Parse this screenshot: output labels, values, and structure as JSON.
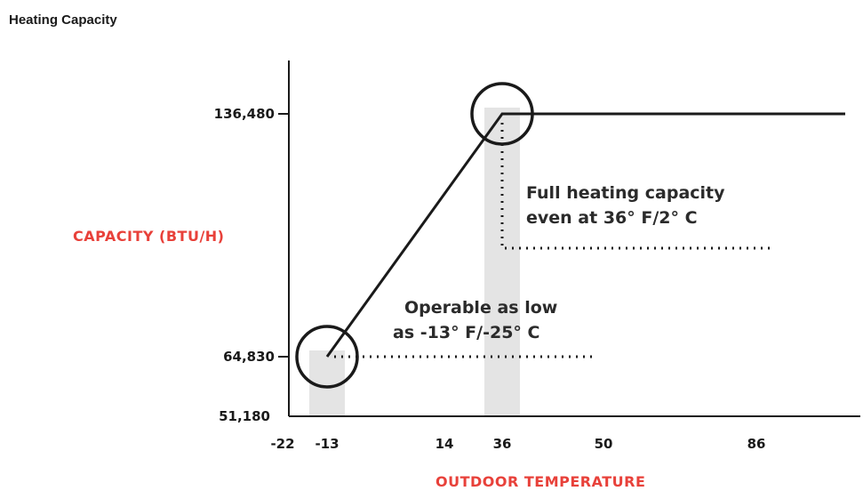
{
  "page_title": "Heating Capacity",
  "chart_data": {
    "type": "line",
    "title": "Heating Capacity",
    "xlabel": "OUTDOOR TEMPERATURE",
    "ylabel": "CAPACITY (BTU/H)",
    "x_ticks": [
      {
        "value": -22,
        "label": "-22"
      },
      {
        "value": -13,
        "label": "-13"
      },
      {
        "value": 14,
        "label": "14"
      },
      {
        "value": 36,
        "label": "36"
      },
      {
        "value": 50,
        "label": "50"
      },
      {
        "value": 86,
        "label": "86"
      }
    ],
    "y_ticks": [
      {
        "value": 51180,
        "label": "51,180"
      },
      {
        "value": 64830,
        "label": "64,830"
      },
      {
        "value": 136480,
        "label": "136,480"
      }
    ],
    "xlim": [
      -22,
      105
    ],
    "ylim": [
      51180,
      136480
    ],
    "series": [
      {
        "x": [
          -13,
          36,
          105
        ],
        "y": [
          64830,
          136480,
          136480
        ]
      }
    ],
    "highlights": [
      {
        "x": -13,
        "y": 64830
      },
      {
        "x": 36,
        "y": 136480
      }
    ],
    "annotations": [
      {
        "lines": [
          "Operable as low",
          "as -13° F/-25° C"
        ],
        "point_x": -13,
        "point_y": 64830
      },
      {
        "lines": [
          "Full heating capacity",
          "even at 36° F/2° C"
        ],
        "point_x": 36,
        "point_y": 136480
      }
    ],
    "colors": {
      "line": "#1a1a1a",
      "axis_title": "#e8413a",
      "band": "#e4e4e4"
    }
  }
}
